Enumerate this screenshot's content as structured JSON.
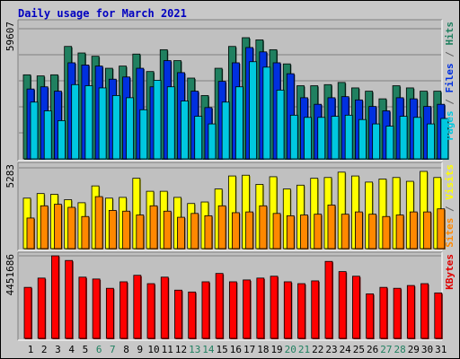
{
  "chart_data": [
    {
      "panel": "top",
      "type": "bar",
      "title": "Daily usage for March 2021",
      "ylabel_max": "59607",
      "right_labels": [
        {
          "text": "Pages",
          "color": "#00c8e0"
        },
        {
          "text": " / ",
          "color": "#606060"
        },
        {
          "text": "Files",
          "color": "#0030e0"
        },
        {
          "text": " / ",
          "color": "#606060"
        },
        {
          "text": "Hits",
          "color": "#208060"
        }
      ],
      "ylim": [
        0,
        59607
      ],
      "categories": [
        "1",
        "2",
        "3",
        "4",
        "5",
        "6",
        "7",
        "8",
        "9",
        "10",
        "11",
        "12",
        "13",
        "14",
        "15",
        "16",
        "17",
        "18",
        "19",
        "20",
        "21",
        "22",
        "23",
        "24",
        "25",
        "26",
        "27",
        "28",
        "29",
        "30",
        "31"
      ],
      "series": [
        {
          "name": "Hits",
          "color": "#208060",
          "values": [
            38500,
            38000,
            38500,
            51500,
            48500,
            47000,
            41500,
            42500,
            48000,
            40000,
            50000,
            45000,
            37000,
            29000,
            41500,
            51500,
            55500,
            54500,
            50000,
            43500,
            33500,
            33500,
            34000,
            35000,
            32500,
            31000,
            27500,
            33500,
            32500,
            31000,
            31000
          ]
        },
        {
          "name": "Files",
          "color": "#0030e0",
          "values": [
            32000,
            33000,
            31000,
            44000,
            43000,
            42500,
            36500,
            37500,
            41500,
            33000,
            45000,
            39500,
            31000,
            23500,
            35500,
            44000,
            51000,
            49000,
            44000,
            39000,
            28000,
            25000,
            28000,
            28500,
            27000,
            24000,
            22000,
            28000,
            27500,
            24000,
            25000
          ]
        },
        {
          "name": "Pages",
          "color": "#00c8e0",
          "values": [
            26000,
            22000,
            17500,
            34000,
            33500,
            32500,
            29000,
            28000,
            22500,
            36000,
            33000,
            26500,
            19500,
            16000,
            26000,
            33000,
            44500,
            42000,
            31500,
            20000,
            19000,
            19000,
            19500,
            20000,
            18000,
            16000,
            15000,
            19500,
            19000,
            16000,
            18500
          ]
        }
      ]
    },
    {
      "panel": "middle",
      "type": "bar",
      "ylabel_max": "5283",
      "right_labels": [
        {
          "text": "Sites",
          "color": "#ff8800"
        },
        {
          "text": " / ",
          "color": "#606060"
        },
        {
          "text": "Visits",
          "color": "#ffff00"
        }
      ],
      "ylim": [
        0,
        5283
      ],
      "categories": [
        "1",
        "2",
        "3",
        "4",
        "5",
        "6",
        "7",
        "8",
        "9",
        "10",
        "11",
        "12",
        "13",
        "14",
        "15",
        "16",
        "17",
        "18",
        "19",
        "20",
        "21",
        "22",
        "23",
        "24",
        "25",
        "26",
        "27",
        "28",
        "29",
        "30",
        "31"
      ],
      "series": [
        {
          "name": "Visits",
          "color": "#ffff00",
          "values": [
            3300,
            3600,
            3550,
            3200,
            3000,
            4100,
            3300,
            3350,
            4600,
            3750,
            3750,
            3350,
            2950,
            3050,
            3900,
            4750,
            4800,
            4200,
            4700,
            3900,
            4150,
            4600,
            4650,
            5000,
            4750,
            4350,
            4550,
            4650,
            4400,
            5050,
            4650
          ]
        },
        {
          "name": "Sites",
          "color": "#ff8800",
          "values": [
            2000,
            2800,
            2900,
            2700,
            2100,
            3400,
            2500,
            2450,
            2200,
            2800,
            2450,
            2050,
            2300,
            2150,
            2800,
            2350,
            2400,
            2800,
            2300,
            2150,
            2200,
            2250,
            2850,
            2250,
            2400,
            2250,
            2100,
            2200,
            2400,
            2400,
            2600
          ]
        }
      ]
    },
    {
      "panel": "bottom",
      "type": "bar",
      "ylabel_max": "4451686",
      "right_labels": [
        {
          "text": "KBytes",
          "color": "#e00000"
        }
      ],
      "ylim": [
        0,
        4451686
      ],
      "categories": [
        "1",
        "2",
        "3",
        "4",
        "5",
        "6",
        "7",
        "8",
        "9",
        "10",
        "11",
        "12",
        "13",
        "14",
        "15",
        "16",
        "17",
        "18",
        "19",
        "20",
        "21",
        "22",
        "23",
        "24",
        "25",
        "26",
        "27",
        "28",
        "29",
        "30",
        "31"
      ],
      "series": [
        {
          "name": "KBytes",
          "color": "#ff0000",
          "values": [
            2750000,
            3250000,
            4450000,
            4200000,
            3300000,
            3200000,
            2700000,
            3050000,
            3400000,
            2950000,
            3300000,
            2600000,
            2500000,
            3050000,
            3500000,
            3050000,
            3150000,
            3250000,
            3350000,
            3050000,
            2950000,
            3100000,
            4150000,
            3600000,
            3350000,
            2400000,
            2750000,
            2700000,
            2850000,
            2950000,
            2450000
          ]
        }
      ]
    }
  ],
  "x_tick_colors": {
    "weekday": "#000000",
    "weekend": "#208060"
  },
  "weekend_days": [
    "6",
    "7",
    "13",
    "14",
    "20",
    "21",
    "27",
    "28"
  ]
}
